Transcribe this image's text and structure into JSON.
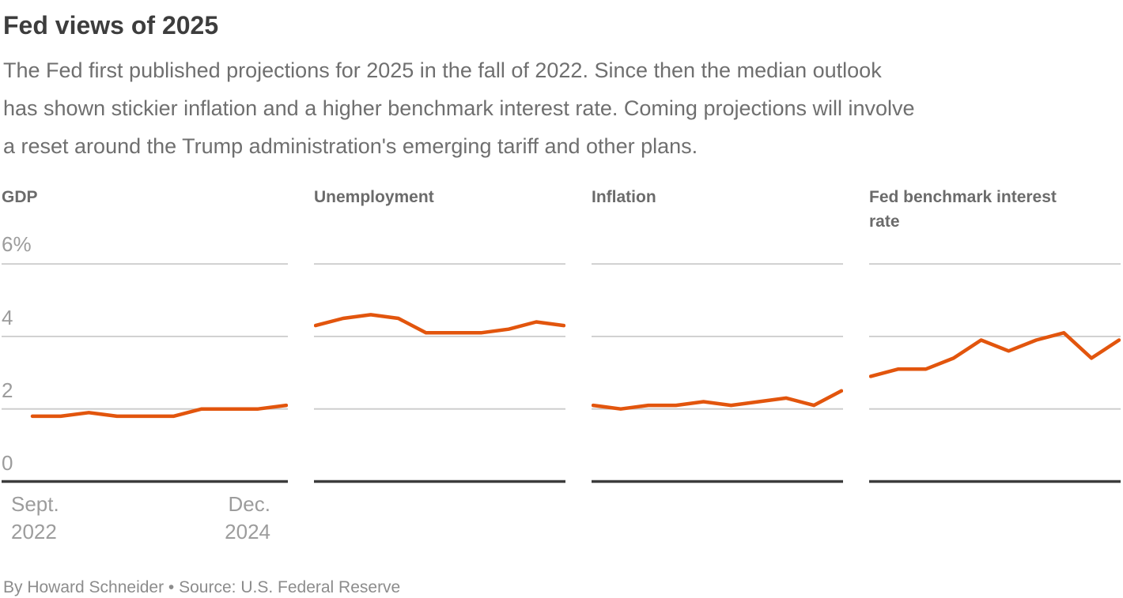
{
  "header": {
    "title": "Fed views of 2025",
    "subtitle_lines": [
      "The Fed first published projections for 2025 in the fall of 2022. Since then the median outlook",
      "has shown stickier inflation and a higher benchmark interest rate. Coming projections will involve",
      "a reset around the Trump administration's emerging tariff and other plans."
    ]
  },
  "axis": {
    "y_ticks": [
      "6%",
      "4",
      "2",
      "0"
    ],
    "x_labels": {
      "start": [
        "Sept.",
        "2022"
      ],
      "end": [
        "Dec.",
        "2024"
      ]
    }
  },
  "chart_data": [
    {
      "type": "line",
      "title": "GDP",
      "x_start": "Sept. 2022",
      "x_end": "Dec. 2024",
      "values": [
        1.8,
        1.8,
        1.9,
        1.8,
        1.8,
        1.8,
        2.0,
        2.0,
        2.0,
        2.1
      ],
      "unit": "%",
      "ylim": [
        0,
        6.9
      ],
      "yticks": [
        0,
        2,
        4,
        6
      ],
      "grid": true,
      "legend": false
    },
    {
      "type": "line",
      "title": "Unemployment",
      "x_start": "Sept. 2022",
      "x_end": "Dec. 2024",
      "values": [
        4.3,
        4.5,
        4.6,
        4.5,
        4.1,
        4.1,
        4.1,
        4.2,
        4.4,
        4.3
      ],
      "unit": "%",
      "ylim": [
        0,
        6.9
      ],
      "yticks": [
        0,
        2,
        4,
        6
      ],
      "grid": true,
      "legend": false
    },
    {
      "type": "line",
      "title": "Inflation",
      "x_start": "Sept. 2022",
      "x_end": "Dec. 2024",
      "values": [
        2.1,
        2.0,
        2.1,
        2.1,
        2.2,
        2.1,
        2.2,
        2.3,
        2.1,
        2.5
      ],
      "unit": "%",
      "ylim": [
        0,
        6.9
      ],
      "yticks": [
        0,
        2,
        4,
        6
      ],
      "grid": true,
      "legend": false
    },
    {
      "type": "line",
      "title": "Fed benchmark interest rate",
      "x_start": "Sept. 2022",
      "x_end": "Dec. 2024",
      "values": [
        2.9,
        3.1,
        3.1,
        3.4,
        3.9,
        3.6,
        3.9,
        4.1,
        3.4,
        3.9
      ],
      "unit": "%",
      "ylim": [
        0,
        6.9
      ],
      "yticks": [
        0,
        2,
        4,
        6
      ],
      "grid": true,
      "legend": false
    }
  ],
  "footer": {
    "byline": "By Howard Schneider • Source: U.S. Federal Reserve"
  },
  "colors": {
    "line": "#E2550D",
    "grid": "#CBCBCB",
    "axis": "#3C3C3C",
    "title": "#3D3D3D",
    "subtitle": "#6F6F6F",
    "panel_title": "#6B6B6B",
    "tick": "#9C9C9C"
  }
}
